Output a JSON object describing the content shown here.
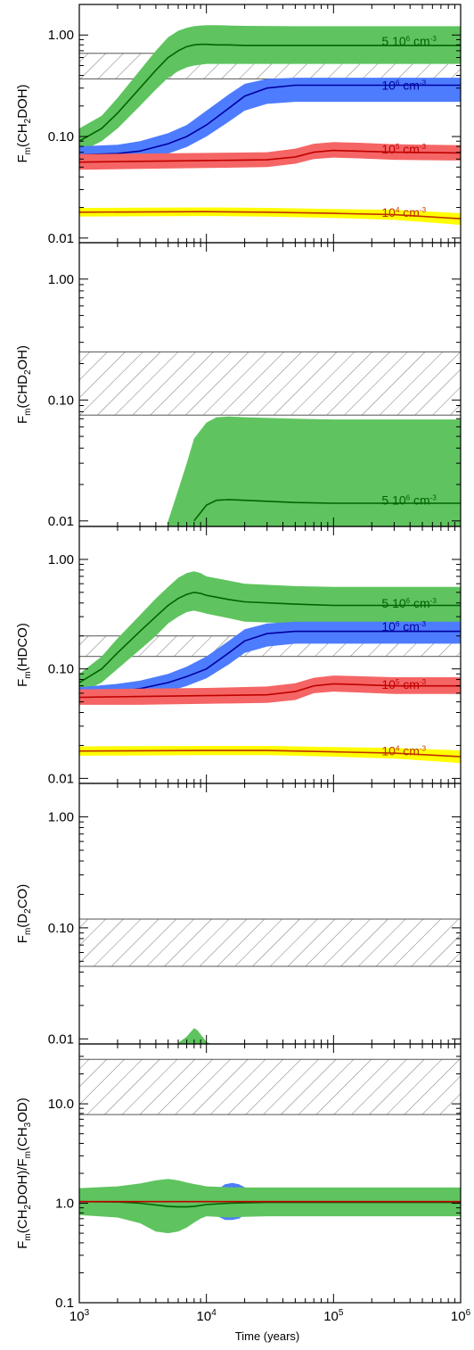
{
  "colors": {
    "n5e6_band": "#5fc45f",
    "n5e6_line": "#006400",
    "n1e6_band": "#4d7cfe",
    "n1e6_line": "#0000a0",
    "n1e5_band": "#f56565",
    "n1e5_line": "#c00000",
    "n1e4_band": "#ffff00",
    "n1e4_line": "#c03000",
    "hatch": "#555555"
  },
  "chart_data": [
    {
      "type": "area",
      "ylabel_parts": [
        "F",
        "m",
        "(CH",
        "2",
        "DOH)"
      ],
      "yscale": "log",
      "ylim": [
        0.009,
        2.0
      ],
      "ytick_values": [
        0.01,
        0.1,
        1.0
      ],
      "ytick_labels": [
        "0.01",
        "0.10",
        "1.00"
      ],
      "obs_range": [
        0.37,
        0.66
      ],
      "series": [
        {
          "key": "n5e6",
          "name_parts": [
            "5 10",
            "6",
            " cm",
            "-3"
          ],
          "label_at": [
            300000.0,
            0.87
          ],
          "x": [
            1000,
            1500,
            2000,
            3000,
            4000,
            5000,
            6000,
            7000,
            8000,
            9000,
            10000,
            12000,
            15000,
            20000,
            50000,
            100000,
            1000000
          ],
          "y": [
            0.09,
            0.12,
            0.17,
            0.3,
            0.45,
            0.6,
            0.7,
            0.77,
            0.8,
            0.81,
            0.81,
            0.8,
            0.8,
            0.79,
            0.79,
            0.79,
            0.79
          ],
          "lo": [
            0.07,
            0.09,
            0.12,
            0.2,
            0.29,
            0.38,
            0.44,
            0.48,
            0.5,
            0.51,
            0.52,
            0.52,
            0.52,
            0.52,
            0.52,
            0.52,
            0.52
          ],
          "hi": [
            0.12,
            0.16,
            0.24,
            0.45,
            0.7,
            0.95,
            1.1,
            1.18,
            1.22,
            1.24,
            1.25,
            1.25,
            1.24,
            1.23,
            1.22,
            1.22,
            1.22
          ]
        },
        {
          "key": "n1e6",
          "name_parts": [
            "10",
            "6",
            " cm",
            "-3"
          ],
          "label_at": [
            300000.0,
            0.32
          ],
          "x": [
            1000,
            2000,
            3000,
            5000,
            7000,
            10000,
            15000,
            20000,
            30000,
            50000,
            100000,
            1000000
          ],
          "y": [
            0.066,
            0.068,
            0.072,
            0.085,
            0.1,
            0.13,
            0.19,
            0.25,
            0.3,
            0.32,
            0.32,
            0.32
          ],
          "lo": [
            0.054,
            0.056,
            0.059,
            0.068,
            0.079,
            0.1,
            0.14,
            0.18,
            0.21,
            0.22,
            0.22,
            0.22
          ],
          "hi": [
            0.08,
            0.083,
            0.09,
            0.108,
            0.13,
            0.18,
            0.26,
            0.33,
            0.37,
            0.38,
            0.38,
            0.38
          ]
        },
        {
          "key": "n1e5",
          "name_parts": [
            "10",
            "5",
            " cm",
            "-3"
          ],
          "label_at": [
            300000.0,
            0.075
          ],
          "x": [
            1000,
            3000,
            10000,
            30000,
            50000,
            70000,
            100000,
            150000,
            300000,
            1000000
          ],
          "y": [
            0.056,
            0.057,
            0.058,
            0.059,
            0.063,
            0.07,
            0.073,
            0.072,
            0.07,
            0.069
          ],
          "lo": [
            0.047,
            0.048,
            0.049,
            0.05,
            0.054,
            0.06,
            0.062,
            0.061,
            0.059,
            0.058
          ],
          "hi": [
            0.067,
            0.068,
            0.069,
            0.07,
            0.076,
            0.085,
            0.088,
            0.087,
            0.084,
            0.082
          ]
        },
        {
          "key": "n1e4",
          "name_parts": [
            "10",
            "4",
            " cm",
            "-3"
          ],
          "label_at": [
            300000.0,
            0.018
          ],
          "x": [
            1000,
            10000,
            30000,
            100000,
            300000,
            1000000
          ],
          "y": [
            0.018,
            0.0182,
            0.018,
            0.0175,
            0.017,
            0.0155
          ],
          "lo": [
            0.0163,
            0.0165,
            0.0163,
            0.0158,
            0.0151,
            0.0135
          ],
          "hi": [
            0.0198,
            0.02,
            0.0198,
            0.0193,
            0.019,
            0.0176
          ]
        }
      ]
    },
    {
      "type": "area",
      "ylabel_parts": [
        "F",
        "m",
        "(CHD",
        "2",
        "OH)"
      ],
      "yscale": "log",
      "ylim": [
        0.009,
        2.0
      ],
      "ytick_values": [
        0.01,
        0.1,
        1.0
      ],
      "ytick_labels": [
        "0.01",
        "0.10",
        "1.00"
      ],
      "obs_range": [
        0.075,
        0.25
      ],
      "series": [
        {
          "key": "n5e6",
          "name_parts": [
            "5 10",
            "6",
            " cm",
            "-3"
          ],
          "label_at": [
            300000.0,
            0.0148
          ],
          "x": [
            5000,
            6000,
            7000,
            8000,
            10000,
            12000,
            15000,
            20000,
            50000,
            100000,
            1000000
          ],
          "y": [
            0.0,
            0.0,
            0.0,
            0.01,
            0.0135,
            0.0148,
            0.015,
            0.0148,
            0.0142,
            0.014,
            0.014
          ],
          "lo": [
            0.0,
            0.0,
            0.0,
            0.0,
            0.0,
            0.0,
            0.0,
            0.0,
            0.0,
            0.0,
            0.0
          ],
          "hi": [
            0.01,
            0.018,
            0.03,
            0.048,
            0.065,
            0.072,
            0.073,
            0.072,
            0.07,
            0.069,
            0.069
          ]
        }
      ]
    },
    {
      "type": "area",
      "ylabel_parts": [
        "F",
        "m",
        "(HDCO)"
      ],
      "yscale": "log",
      "ylim": [
        0.009,
        2.0
      ],
      "ytick_values": [
        0.01,
        0.1,
        1.0
      ],
      "ytick_labels": [
        "0.01",
        "0.10",
        "1.00"
      ],
      "obs_range": [
        0.13,
        0.2
      ],
      "series": [
        {
          "key": "n5e6",
          "name_parts": [
            "5 10",
            "6",
            " cm",
            "-3"
          ],
          "label_at": [
            300000.0,
            0.4
          ],
          "x": [
            1000,
            1500,
            2000,
            3000,
            4000,
            5000,
            6000,
            7000,
            8000,
            9000,
            10000,
            15000,
            20000,
            50000,
            100000,
            1000000
          ],
          "y": [
            0.075,
            0.1,
            0.14,
            0.22,
            0.3,
            0.38,
            0.44,
            0.48,
            0.5,
            0.49,
            0.47,
            0.43,
            0.41,
            0.39,
            0.38,
            0.38
          ],
          "lo": [
            0.06,
            0.075,
            0.1,
            0.15,
            0.2,
            0.26,
            0.3,
            0.33,
            0.34,
            0.33,
            0.32,
            0.29,
            0.27,
            0.26,
            0.26,
            0.26
          ],
          "hi": [
            0.09,
            0.13,
            0.19,
            0.31,
            0.44,
            0.56,
            0.68,
            0.75,
            0.78,
            0.75,
            0.7,
            0.64,
            0.6,
            0.57,
            0.56,
            0.56
          ]
        },
        {
          "key": "n1e6",
          "name_parts": [
            "10",
            "6",
            " cm",
            "-3"
          ],
          "label_at": [
            300000.0,
            0.245
          ],
          "x": [
            1000,
            2000,
            3000,
            5000,
            7000,
            10000,
            15000,
            20000,
            30000,
            50000,
            100000,
            1000000
          ],
          "y": [
            0.058,
            0.062,
            0.066,
            0.075,
            0.085,
            0.1,
            0.14,
            0.18,
            0.21,
            0.22,
            0.22,
            0.22
          ],
          "lo": [
            0.05,
            0.052,
            0.055,
            0.062,
            0.07,
            0.082,
            0.11,
            0.14,
            0.16,
            0.17,
            0.17,
            0.17
          ],
          "hi": [
            0.068,
            0.073,
            0.078,
            0.09,
            0.105,
            0.13,
            0.18,
            0.23,
            0.26,
            0.27,
            0.27,
            0.27
          ]
        },
        {
          "key": "n1e5",
          "name_parts": [
            "10",
            "5",
            " cm",
            "-3"
          ],
          "label_at": [
            300000.0,
            0.072
          ],
          "x": [
            1000,
            3000,
            10000,
            30000,
            50000,
            70000,
            100000,
            150000,
            300000,
            1000000
          ],
          "y": [
            0.055,
            0.056,
            0.057,
            0.058,
            0.062,
            0.07,
            0.073,
            0.072,
            0.07,
            0.07
          ],
          "lo": [
            0.047,
            0.047,
            0.048,
            0.049,
            0.052,
            0.06,
            0.062,
            0.061,
            0.059,
            0.059
          ],
          "hi": [
            0.065,
            0.066,
            0.067,
            0.069,
            0.074,
            0.083,
            0.087,
            0.086,
            0.084,
            0.084
          ]
        },
        {
          "key": "n1e4",
          "name_parts": [
            "10",
            "4",
            " cm",
            "-3"
          ],
          "label_at": [
            300000.0,
            0.0178
          ],
          "x": [
            1000,
            10000,
            30000,
            100000,
            300000,
            1000000
          ],
          "y": [
            0.0178,
            0.018,
            0.018,
            0.0175,
            0.017,
            0.0158
          ],
          "lo": [
            0.0161,
            0.0163,
            0.0163,
            0.0158,
            0.0152,
            0.0138
          ],
          "hi": [
            0.0196,
            0.0198,
            0.0198,
            0.0193,
            0.019,
            0.018
          ]
        }
      ]
    },
    {
      "type": "area",
      "ylabel_parts": [
        "F",
        "m",
        "(D",
        "2",
        "CO)"
      ],
      "yscale": "log",
      "ylim": [
        0.009,
        2.0
      ],
      "ytick_values": [
        0.01,
        0.1,
        1.0
      ],
      "ytick_labels": [
        "0.01",
        "0.10",
        "1.00"
      ],
      "obs_range": [
        0.045,
        0.12
      ],
      "series": [
        {
          "key": "n5e6",
          "name_parts": [],
          "label_at": null,
          "x": [
            6000,
            7000,
            7500,
            8000,
            8500,
            9000,
            9500,
            10000,
            11000
          ],
          "y": [
            0.0,
            0.0,
            0.0,
            0.0,
            0.0,
            0.0,
            0.0,
            0.0,
            0.0
          ],
          "lo": [
            0.0,
            0.0,
            0.0,
            0.0,
            0.0,
            0.0,
            0.0,
            0.0,
            0.0
          ],
          "hi": [
            0.0092,
            0.0105,
            0.0115,
            0.0125,
            0.012,
            0.011,
            0.0102,
            0.0094,
            0.0088
          ]
        }
      ]
    },
    {
      "type": "area",
      "ylabel_parts": [
        "F",
        "m",
        "(CH",
        "2",
        "DOH)/F",
        "m",
        "(CH",
        "3",
        "OD)"
      ],
      "xlabel": "Time (years)",
      "xtick_values": [
        1000,
        10000,
        100000,
        1000000
      ],
      "xtick_base": "10",
      "xtick_exps": [
        "3",
        "4",
        "5",
        "6"
      ],
      "yscale": "log",
      "ylim": [
        0.1,
        40.0
      ],
      "ytick_values": [
        0.1,
        1.0,
        10.0
      ],
      "ytick_labels": [
        "0.1",
        "1.0",
        "10.0"
      ],
      "obs_range": [
        7.8,
        28.0
      ],
      "series": [
        {
          "key": "n1e6",
          "name_parts": [],
          "label_at": null,
          "x": [
            1000,
            10000,
            12000,
            14000,
            16000,
            18000,
            20000,
            25000,
            30000,
            1000000
          ],
          "y": [
            1.04,
            1.04,
            1.04,
            1.04,
            1.04,
            1.04,
            1.04,
            1.04,
            1.04,
            1.04
          ],
          "lo": [
            0.88,
            0.88,
            0.75,
            0.68,
            0.68,
            0.7,
            0.76,
            0.85,
            0.88,
            0.88
          ],
          "hi": [
            1.22,
            1.22,
            1.35,
            1.55,
            1.6,
            1.55,
            1.45,
            1.28,
            1.22,
            1.22
          ]
        },
        {
          "key": "n5e6",
          "name_parts": [],
          "label_at": null,
          "x": [
            1000,
            2000,
            3000,
            4000,
            5000,
            6000,
            7000,
            8000,
            9000,
            10000,
            15000,
            20000,
            30000,
            50000,
            100000,
            1000000
          ],
          "y": [
            1.04,
            1.03,
            1.0,
            0.96,
            0.93,
            0.92,
            0.92,
            0.93,
            0.95,
            0.97,
            1.0,
            1.01,
            1.02,
            1.02,
            1.02,
            1.02
          ],
          "lo": [
            0.76,
            0.72,
            0.63,
            0.52,
            0.5,
            0.52,
            0.57,
            0.64,
            0.7,
            0.74,
            0.72,
            0.73,
            0.74,
            0.74,
            0.74,
            0.74
          ],
          "hi": [
            1.42,
            1.48,
            1.58,
            1.7,
            1.76,
            1.7,
            1.62,
            1.56,
            1.52,
            1.48,
            1.45,
            1.44,
            1.44,
            1.44,
            1.44,
            1.44
          ]
        },
        {
          "key": "n1e5",
          "name_parts": [],
          "label_at": null,
          "x": [
            1000,
            1000000
          ],
          "y": [
            1.04,
            1.04
          ],
          "lo": [
            1.04,
            1.04
          ],
          "hi": [
            1.04,
            1.04
          ]
        }
      ]
    }
  ]
}
